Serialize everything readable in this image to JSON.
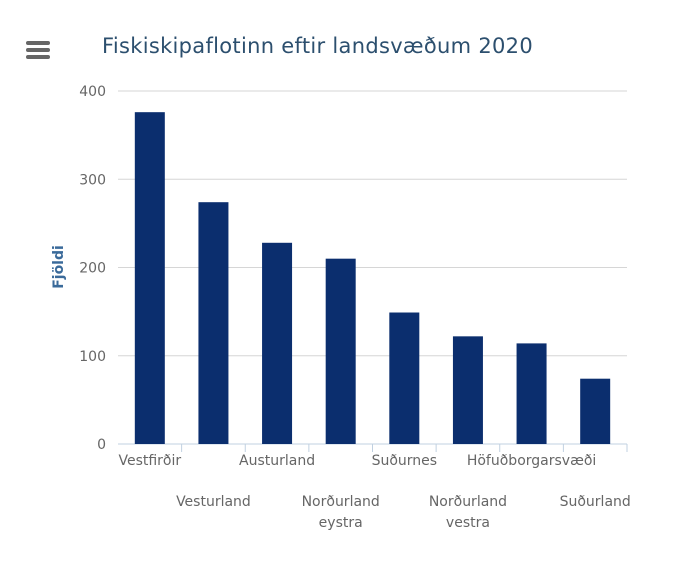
{
  "menu": {
    "icon": "menu-icon"
  },
  "chart_data": {
    "type": "bar",
    "title": "Fiskiskipaflotinn eftir landsvæðum 2020",
    "xlabel": "",
    "ylabel": "Fjöldi",
    "categories": [
      "Vestfirðir",
      "Vesturland",
      "Austurland",
      "Norðurland eystra",
      "Suðurnes",
      "Norðurland vestra",
      "Höfuðborgarsvæði",
      "Suðurland"
    ],
    "values": [
      376,
      274,
      228,
      210,
      149,
      122,
      114,
      74
    ],
    "ylim": [
      0,
      400
    ],
    "yticks": [
      0,
      100,
      200,
      300,
      400
    ],
    "bar_color": "#0b2e6e",
    "grid": true,
    "legend": "none"
  }
}
